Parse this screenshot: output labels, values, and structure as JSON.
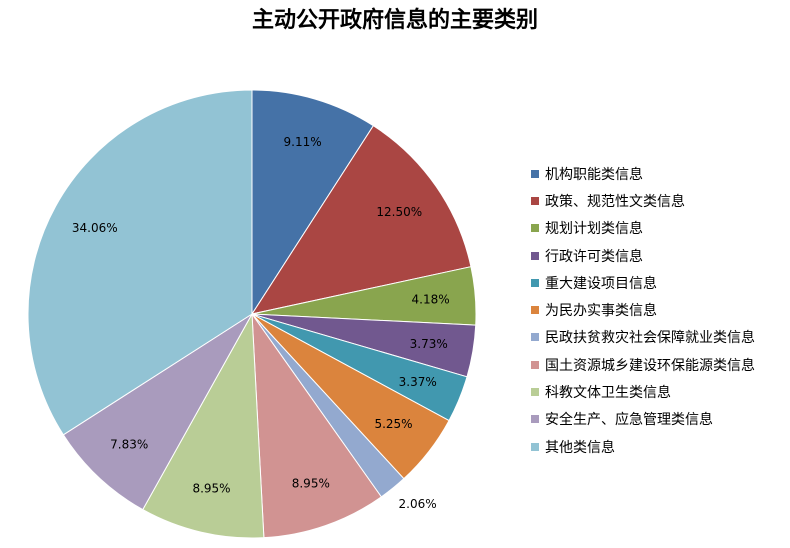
{
  "chart_data": {
    "type": "pie",
    "title": "主动公开政府信息的主要类别",
    "legend_position": "right",
    "slices": [
      {
        "label": "机构职能类信息",
        "value": 9.11,
        "value_label": "9.11%",
        "color": "#4572A7"
      },
      {
        "label": "政策、规范性文类信息",
        "value": 12.5,
        "value_label": "12.50%",
        "color": "#AA4643"
      },
      {
        "label": "规划计划类信息",
        "value": 4.18,
        "value_label": "4.18%",
        "color": "#89A54E"
      },
      {
        "label": "行政许可类信息",
        "value": 3.73,
        "value_label": "3.73%",
        "color": "#71588F"
      },
      {
        "label": "重大建设项目信息",
        "value": 3.37,
        "value_label": "3.37%",
        "color": "#4198AF"
      },
      {
        "label": "为民办实事类信息",
        "value": 5.25,
        "value_label": "5.25%",
        "color": "#DB843D"
      },
      {
        "label": "民政扶贫救灾社会保障就业类信息",
        "value": 2.06,
        "value_label": "2.06%",
        "color": "#93A9CF"
      },
      {
        "label": "国土资源城乡建设环保能源类信息",
        "value": 8.95,
        "value_label": "8.95%",
        "color": "#D19392"
      },
      {
        "label": "科教文体卫生类信息",
        "value": 8.95,
        "value_label": "8.95%",
        "color": "#B9CD96"
      },
      {
        "label": "安全生产、应急管理类信息",
        "value": 7.83,
        "value_label": "7.83%",
        "color": "#A99BBD"
      },
      {
        "label": "其他类信息",
        "value": 34.06,
        "value_label": "34.06%",
        "color": "#92C3D4"
      }
    ]
  }
}
